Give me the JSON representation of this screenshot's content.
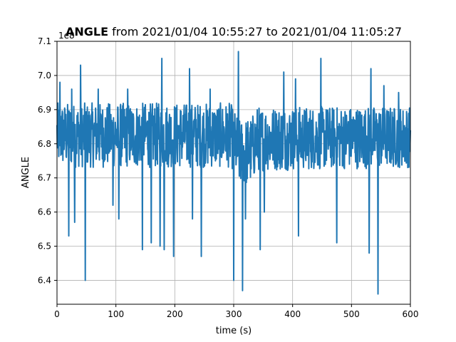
{
  "title": {
    "bold": "ANGLE",
    "rest": " from 2021/01/04 10:55:27 to 2021/01/04 11:05:27"
  },
  "offset_text": "1e8",
  "colors": {
    "line": "#1f77b4",
    "grid": "#b0b0b0",
    "axis": "#000000"
  },
  "chart_data": {
    "type": "line",
    "xlabel": "time (s)",
    "ylabel": "ANGLE",
    "xlim": [
      0,
      600
    ],
    "ylim": [
      6.33,
      7.1
    ],
    "y_scale_factor": "1e8",
    "grid": true,
    "xticks": [
      0,
      100,
      200,
      300,
      400,
      500,
      600
    ],
    "xtick_labels": [
      "0",
      "100",
      "200",
      "300",
      "400",
      "500",
      "600"
    ],
    "yticks": [
      6.4,
      6.5,
      6.6,
      6.7,
      6.8,
      6.9,
      7.0,
      7.1
    ],
    "ytick_labels": [
      "6.4",
      "6.5",
      "6.6",
      "6.7",
      "6.8",
      "6.9",
      "7.0",
      "7.1"
    ],
    "series": [
      {
        "baseline": [
          [
            0,
            6.83
          ],
          [
            295,
            6.83
          ],
          [
            300,
            6.8
          ],
          [
            310,
            6.77
          ],
          [
            320,
            6.77
          ],
          [
            330,
            6.8
          ],
          [
            340,
            6.81
          ],
          [
            600,
            6.82
          ]
        ],
        "band": [
          [
            0,
            6.73,
            6.92
          ],
          [
            295,
            6.73,
            6.92
          ],
          [
            300,
            6.72,
            6.9
          ],
          [
            310,
            6.67,
            6.87
          ],
          [
            330,
            6.68,
            6.88
          ],
          [
            340,
            6.72,
            6.91
          ],
          [
            600,
            6.73,
            6.91
          ]
        ],
        "spikes": [
          [
            40,
            7.03
          ],
          [
            178,
            7.05
          ],
          [
            225,
            7.02
          ],
          [
            308,
            7.07
          ],
          [
            385,
            7.01
          ],
          [
            405,
            6.99
          ],
          [
            448,
            7.05
          ],
          [
            530,
            7.02
          ],
          [
            533,
            7.02
          ],
          [
            555,
            6.97
          ],
          [
            5,
            6.98
          ],
          [
            25,
            6.96
          ],
          [
            70,
            6.96
          ],
          [
            120,
            6.96
          ],
          [
            260,
            6.96
          ],
          [
            580,
            6.95
          ],
          [
            48,
            6.4
          ],
          [
            145,
            6.49
          ],
          [
            160,
            6.51
          ],
          [
            175,
            6.5
          ],
          [
            182,
            6.49
          ],
          [
            198,
            6.47
          ],
          [
            245,
            6.47
          ],
          [
            300,
            6.4
          ],
          [
            315,
            6.37
          ],
          [
            345,
            6.49
          ],
          [
            410,
            6.53
          ],
          [
            475,
            6.51
          ],
          [
            530,
            6.48
          ],
          [
            545,
            6.36
          ],
          [
            95,
            6.62
          ],
          [
            105,
            6.58
          ],
          [
            20,
            6.53
          ],
          [
            30,
            6.57
          ],
          [
            230,
            6.58
          ],
          [
            320,
            6.58
          ],
          [
            352,
            6.6
          ]
        ]
      }
    ]
  }
}
